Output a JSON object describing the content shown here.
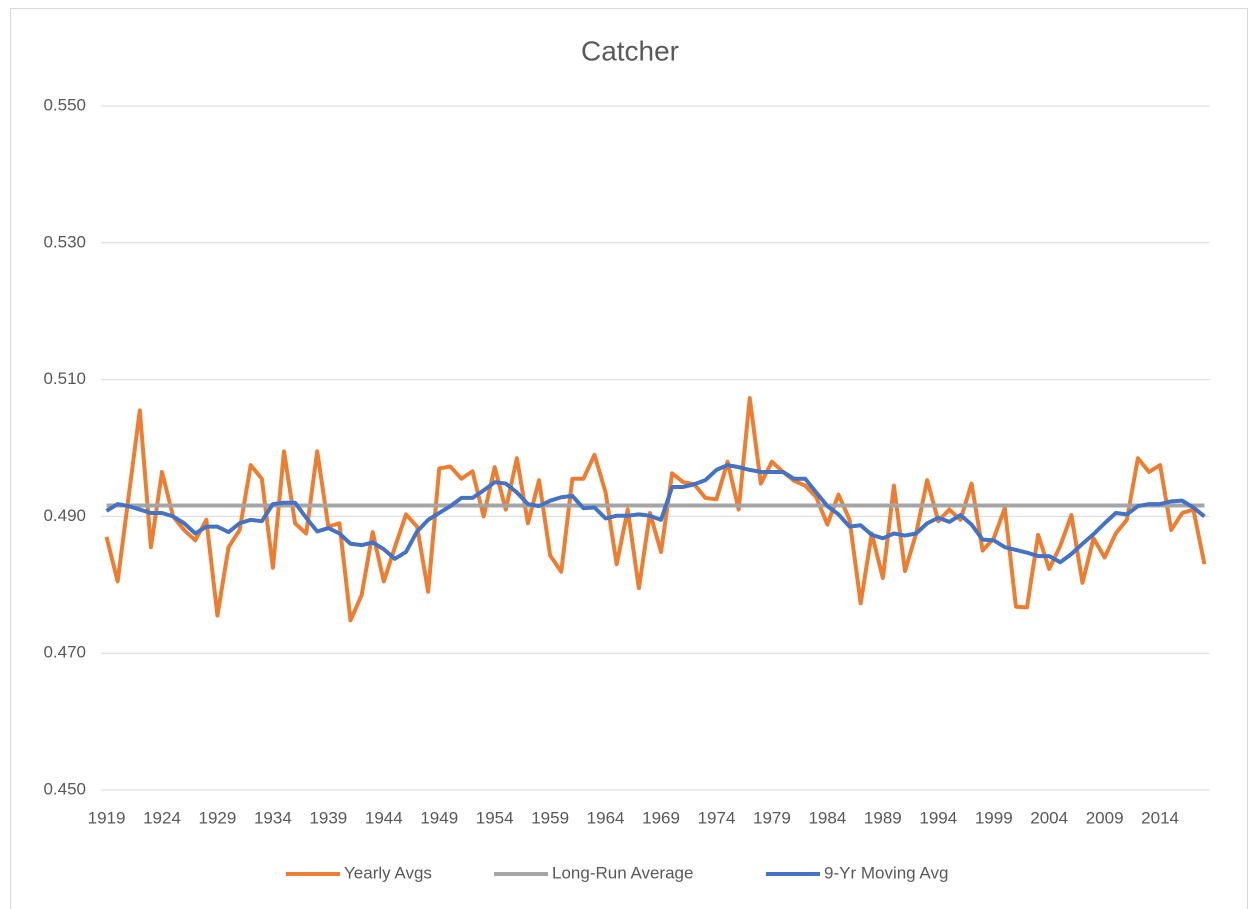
{
  "chart_data": {
    "type": "line",
    "title": "Catcher",
    "categories": [
      "1919",
      null,
      null,
      null,
      null,
      "1924",
      null,
      null,
      null,
      null,
      "1929",
      null,
      null,
      null,
      null,
      "1934",
      null,
      null,
      null,
      null,
      "1939",
      null,
      null,
      null,
      null,
      "1944",
      null,
      null,
      null,
      null,
      "1949",
      null,
      null,
      null,
      null,
      "1954",
      null,
      null,
      null,
      null,
      "1959",
      null,
      null,
      null,
      null,
      "1964",
      null,
      null,
      null,
      null,
      "1969",
      null,
      null,
      null,
      null,
      "1974",
      null,
      null,
      null,
      null,
      "1979",
      null,
      null,
      null,
      null,
      "1984",
      null,
      null,
      null,
      null,
      "1989",
      null,
      null,
      null,
      null,
      "1994",
      null,
      null,
      null,
      null,
      "1999",
      null,
      null,
      null,
      null,
      "2004",
      null,
      null,
      null,
      null,
      "2009",
      null,
      null,
      null,
      null,
      "2014",
      null,
      null,
      null,
      null
    ],
    "series": [
      {
        "name": "Yearly Avgs",
        "color": "#ED7D31",
        "values": [
          0.487,
          0.4805,
          0.493,
          0.5055,
          0.4855,
          0.4965,
          0.49,
          0.488,
          0.4865,
          0.4895,
          0.4755,
          0.4855,
          0.488,
          0.4975,
          0.4955,
          0.4825,
          0.4995,
          0.489,
          0.4875,
          0.4995,
          0.4885,
          0.489,
          0.4748,
          0.4785,
          0.4877,
          0.4805,
          0.4855,
          0.4903,
          0.4885,
          0.479,
          0.497,
          0.4973,
          0.4955,
          0.4966,
          0.49,
          0.4972,
          0.491,
          0.4985,
          0.489,
          0.4953,
          0.4843,
          0.4819,
          0.4955,
          0.4955,
          0.499,
          0.4935,
          0.483,
          0.491,
          0.4795,
          0.4905,
          0.4848,
          0.4963,
          0.495,
          0.4947,
          0.4927,
          0.4925,
          0.498,
          0.491,
          0.5073,
          0.4948,
          0.498,
          0.4965,
          0.4952,
          0.4945,
          0.4928,
          0.4888,
          0.4932,
          0.4895,
          0.4773,
          0.4875,
          0.481,
          0.4945,
          0.482,
          0.4875,
          0.4953,
          0.4893,
          0.491,
          0.4895,
          0.4948,
          0.485,
          0.4868,
          0.4912,
          0.4768,
          0.4767,
          0.4873,
          0.4823,
          0.4857,
          0.4902,
          0.4803,
          0.4868,
          0.484,
          0.4875,
          0.4895,
          0.4985,
          0.4965,
          0.4975,
          0.488,
          0.4905,
          0.491,
          0.483
        ]
      },
      {
        "name": "Long-Run Average",
        "color": "#A5A5A5",
        "values": [
          0.4916,
          0.4916,
          0.4916,
          0.4916,
          0.4916,
          0.4916,
          0.4916,
          0.4916,
          0.4916,
          0.4916,
          0.4916,
          0.4916,
          0.4916,
          0.4916,
          0.4916,
          0.4916,
          0.4916,
          0.4916,
          0.4916,
          0.4916,
          0.4916,
          0.4916,
          0.4916,
          0.4916,
          0.4916,
          0.4916,
          0.4916,
          0.4916,
          0.4916,
          0.4916,
          0.4916,
          0.4916,
          0.4916,
          0.4916,
          0.4916,
          0.4916,
          0.4916,
          0.4916,
          0.4916,
          0.4916,
          0.4916,
          0.4916,
          0.4916,
          0.4916,
          0.4916,
          0.4916,
          0.4916,
          0.4916,
          0.4916,
          0.4916,
          0.4916,
          0.4916,
          0.4916,
          0.4916,
          0.4916,
          0.4916,
          0.4916,
          0.4916,
          0.4916,
          0.4916,
          0.4916,
          0.4916,
          0.4916,
          0.4916,
          0.4916,
          0.4916,
          0.4916,
          0.4916,
          0.4916,
          0.4916,
          0.4916,
          0.4916,
          0.4916,
          0.4916,
          0.4916,
          0.4916,
          0.4916,
          0.4916,
          0.4916,
          0.4916,
          0.4916,
          0.4916,
          0.4916,
          0.4916,
          0.4916,
          0.4916,
          0.4916,
          0.4916,
          0.4916,
          0.4916,
          0.4916,
          0.4916,
          0.4916,
          0.4916,
          0.4916,
          0.4916,
          0.4916,
          0.4916,
          0.4916,
          0.4916
        ]
      },
      {
        "name": "9-Yr Moving Avg",
        "color": "#4472C4",
        "values": [
          0.4908,
          0.4918,
          0.4915,
          0.491,
          0.4905,
          0.4905,
          0.49,
          0.489,
          0.4875,
          0.4885,
          0.4885,
          0.4877,
          0.489,
          0.4895,
          0.4893,
          0.4918,
          0.492,
          0.492,
          0.4898,
          0.4878,
          0.4883,
          0.4875,
          0.486,
          0.4858,
          0.4862,
          0.4852,
          0.4838,
          0.4848,
          0.4878,
          0.4895,
          0.4905,
          0.4915,
          0.4927,
          0.4927,
          0.4938,
          0.495,
          0.4948,
          0.4935,
          0.4918,
          0.4915,
          0.4923,
          0.4928,
          0.493,
          0.4912,
          0.4913,
          0.4897,
          0.4901,
          0.4901,
          0.4903,
          0.4901,
          0.4895,
          0.4943,
          0.4943,
          0.4947,
          0.4953,
          0.4968,
          0.4975,
          0.4972,
          0.4968,
          0.4965,
          0.4965,
          0.4965,
          0.4955,
          0.4955,
          0.4935,
          0.4915,
          0.4903,
          0.4885,
          0.4887,
          0.4873,
          0.4868,
          0.4875,
          0.4872,
          0.4875,
          0.489,
          0.4898,
          0.4892,
          0.4902,
          0.4888,
          0.4866,
          0.4865,
          0.4855,
          0.4851,
          0.4847,
          0.4842,
          0.4842,
          0.4833,
          0.4845,
          0.486,
          0.4874,
          0.489,
          0.4905,
          0.4903,
          0.4915,
          0.4918,
          0.4918,
          0.4922,
          0.4923,
          0.4913,
          0.49
        ]
      }
    ],
    "ylim": [
      0.45,
      0.55
    ],
    "yticks": [
      {
        "value": 0.45,
        "label": "0.450"
      },
      {
        "value": 0.47,
        "label": "0.470"
      },
      {
        "value": 0.49,
        "label": "0.490"
      },
      {
        "value": 0.51,
        "label": "0.510"
      },
      {
        "value": 0.53,
        "label": "0.530"
      },
      {
        "value": 0.55,
        "label": "0.550"
      }
    ],
    "grid": true,
    "legend": "bottom"
  }
}
